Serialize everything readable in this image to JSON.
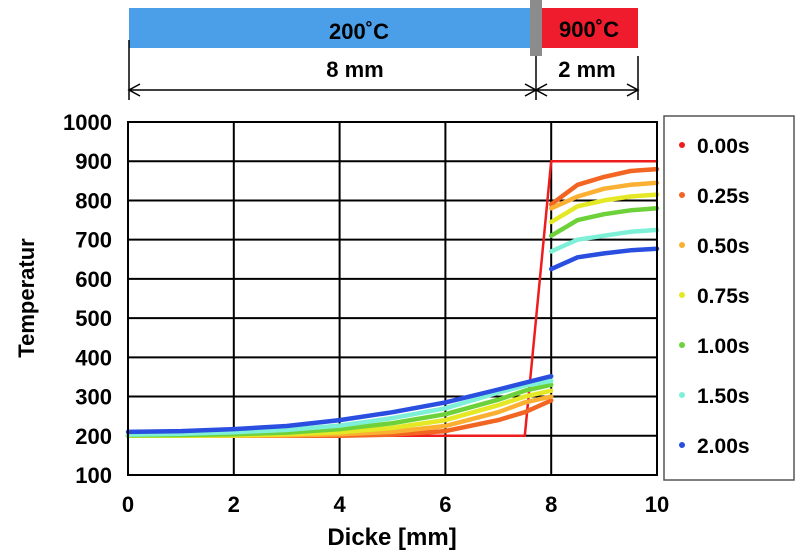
{
  "header": {
    "segments": [
      {
        "label": "200˚C",
        "length": "8 mm",
        "color": "#4a9fe8"
      },
      {
        "label": "900˚C",
        "length": "2 mm",
        "color": "#ee1c2c"
      }
    ],
    "divider_color": "#8c8c8c"
  },
  "chart_data": {
    "type": "line",
    "title": "",
    "xlabel": "Dicke [mm]",
    "ylabel": "Temperatur",
    "xlim": [
      0,
      10
    ],
    "ylim": [
      100,
      1000
    ],
    "xticks": [
      0,
      2,
      4,
      6,
      8,
      10
    ],
    "yticks": [
      100,
      200,
      300,
      400,
      500,
      600,
      700,
      800,
      900,
      1000
    ],
    "grid": true,
    "legend_position": "right",
    "x": [
      0,
      1,
      2,
      3,
      4,
      5,
      6,
      7,
      7.5,
      8,
      8.25,
      8.5,
      9,
      9.5,
      10
    ],
    "series": [
      {
        "name": "0.00s",
        "color": "#ee1c1c",
        "values": [
          200,
          200,
          200,
          200,
          200,
          200,
          200,
          200,
          200,
          900,
          900,
          900,
          900,
          900,
          900
        ]
      },
      {
        "name": "0.25s",
        "color": "#f26522",
        "values": [
          200,
          200,
          200,
          200,
          200,
          203,
          212,
          240,
          260,
          290,
          815,
          840,
          860,
          875,
          880
        ]
      },
      {
        "name": "0.50s",
        "color": "#fbb034",
        "values": [
          200,
          200,
          200,
          201,
          204,
          210,
          225,
          260,
          285,
          300,
          795,
          810,
          830,
          840,
          845
        ]
      },
      {
        "name": "0.75s",
        "color": "#e4e825",
        "values": [
          200,
          200,
          201,
          204,
          209,
          220,
          240,
          278,
          300,
          315,
          765,
          785,
          800,
          810,
          815
        ]
      },
      {
        "name": "1.00s",
        "color": "#6dd23a",
        "values": [
          201,
          202,
          204,
          208,
          217,
          232,
          255,
          292,
          315,
          330,
          730,
          750,
          765,
          775,
          780
        ]
      },
      {
        "name": "1.50s",
        "color": "#7ff0d8",
        "values": [
          203,
          205,
          209,
          215,
          226,
          245,
          270,
          310,
          328,
          340,
          685,
          700,
          710,
          720,
          725
        ]
      },
      {
        "name": "2.00s",
        "color": "#2a4fe0",
        "values": [
          210,
          212,
          217,
          225,
          240,
          260,
          285,
          318,
          335,
          352,
          640,
          655,
          665,
          673,
          677
        ]
      }
    ]
  }
}
